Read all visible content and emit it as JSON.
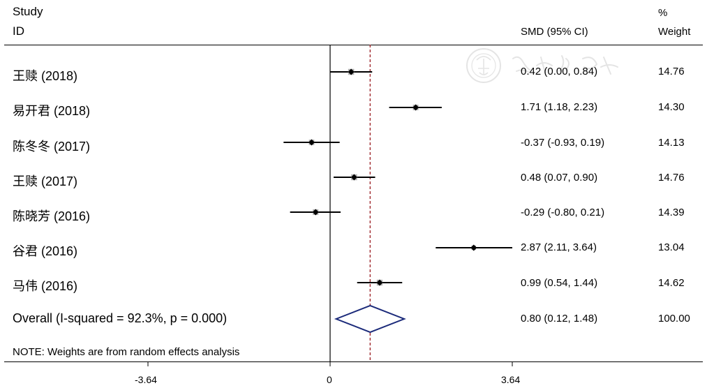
{
  "headers": {
    "study_line1": "Study",
    "study_line2": "ID",
    "smd": "SMD (95% CI)",
    "weight_line1": "%",
    "weight_line2": "Weight"
  },
  "chart_data": {
    "type": "forest",
    "xlim": [
      -3.64,
      3.64
    ],
    "ticks": [
      "-3.64",
      "0",
      "3.64"
    ],
    "null_line": 0,
    "overall_line": 0.8,
    "studies": [
      {
        "label": "王赎 (2018)",
        "smd": 0.42,
        "lo": 0.0,
        "hi": 0.84,
        "ci_text": "0.42 (0.00, 0.84)",
        "weight": "14.76"
      },
      {
        "label": "易开君 (2018)",
        "smd": 1.71,
        "lo": 1.18,
        "hi": 2.23,
        "ci_text": "1.71 (1.18, 2.23)",
        "weight": "14.30"
      },
      {
        "label": "陈冬冬 (2017)",
        "smd": -0.37,
        "lo": -0.93,
        "hi": 0.19,
        "ci_text": "-0.37 (-0.93, 0.19)",
        "weight": "14.13"
      },
      {
        "label": "王赎 (2017)",
        "smd": 0.48,
        "lo": 0.07,
        "hi": 0.9,
        "ci_text": "0.48 (0.07, 0.90)",
        "weight": "14.76"
      },
      {
        "label": "陈晓芳 (2016)",
        "smd": -0.29,
        "lo": -0.8,
        "hi": 0.21,
        "ci_text": "-0.29 (-0.80, 0.21)",
        "weight": "14.39"
      },
      {
        "label": "谷君 (2016)",
        "smd": 2.87,
        "lo": 2.11,
        "hi": 3.64,
        "ci_text": "2.87 (2.11, 3.64)",
        "weight": "13.04"
      },
      {
        "label": "马伟 (2016)",
        "smd": 0.99,
        "lo": 0.54,
        "hi": 1.44,
        "ci_text": "0.99 (0.54, 1.44)",
        "weight": "14.62"
      }
    ],
    "overall": {
      "label": "Overall  (I-squared = 92.3%, p = 0.000)",
      "smd": 0.8,
      "lo": 0.12,
      "hi": 1.48,
      "ci_text": "0.80 (0.12, 1.48)",
      "weight": "100.00"
    },
    "note": "NOTE: Weights are from random effects analysis",
    "colors": {
      "null_line": "#000000",
      "overall_line": "#a0282d",
      "diamond": "#1b2a7a",
      "box": "#b3b3b3",
      "ci": "#000000"
    }
  }
}
